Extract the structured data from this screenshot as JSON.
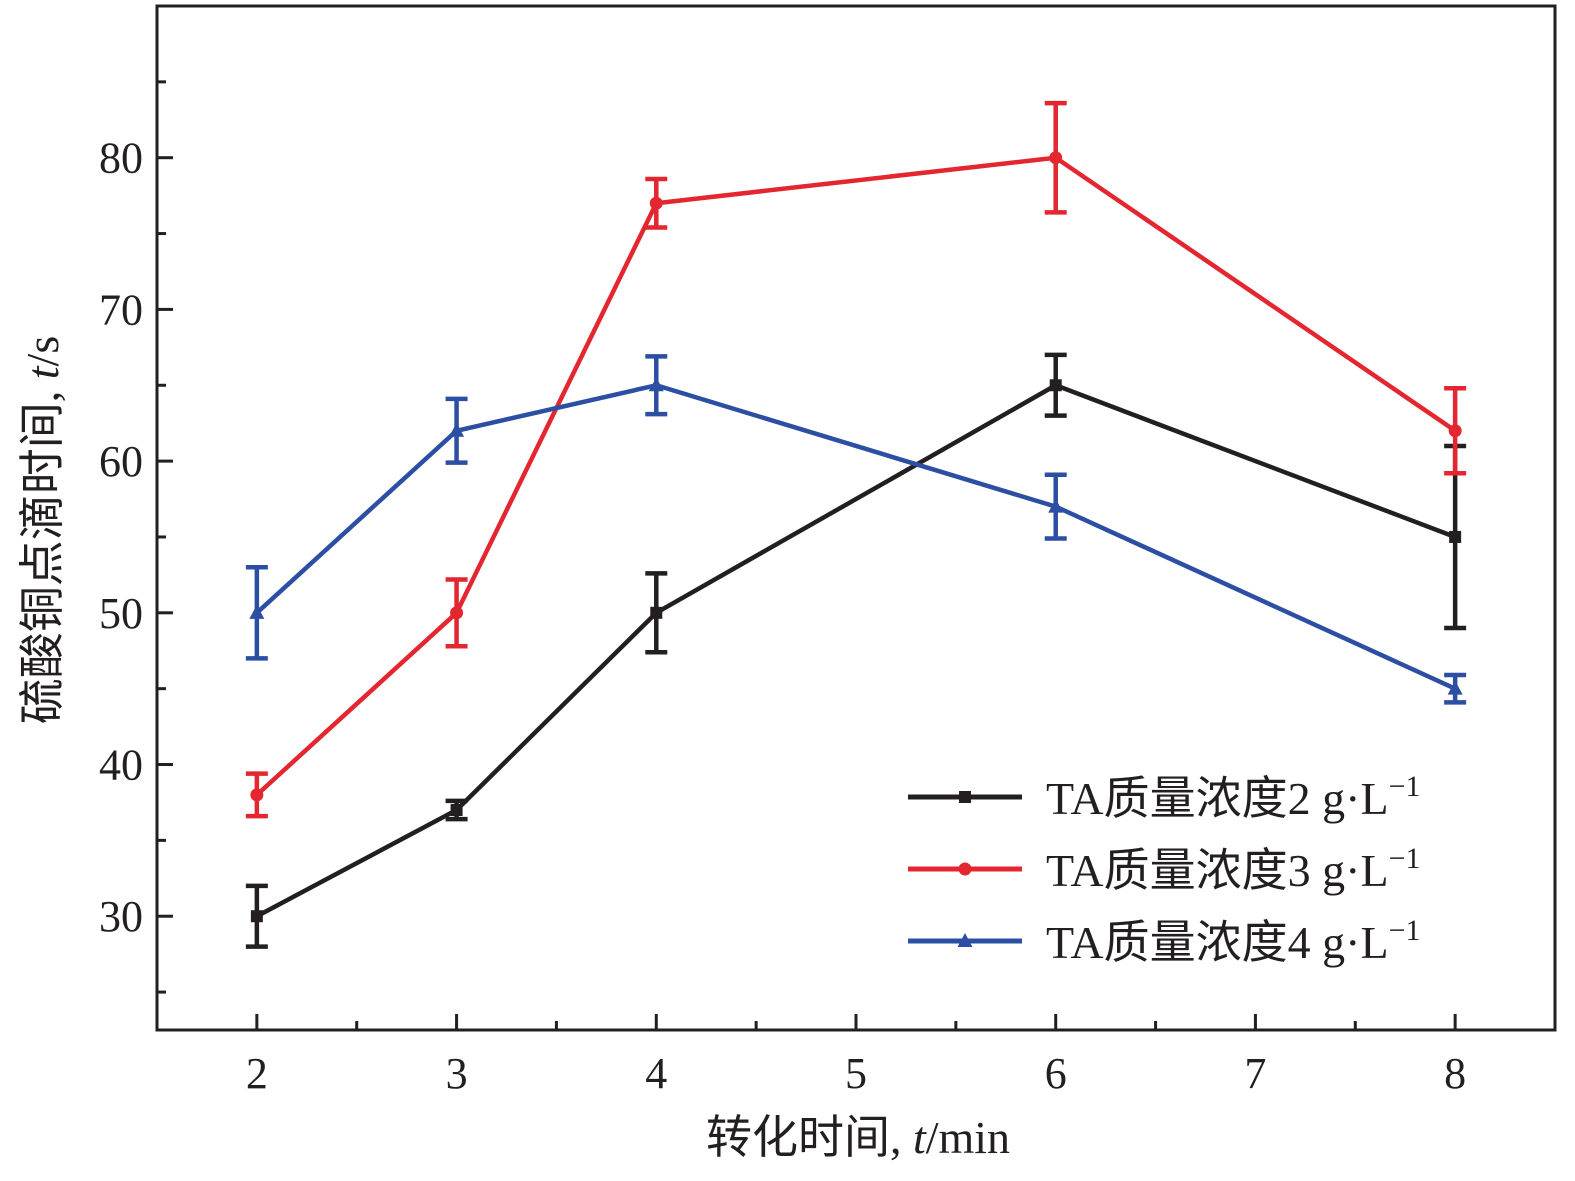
{
  "chart_data": {
    "type": "line",
    "xlabel": "转化时间, t/min",
    "xlabel_parts": {
      "prefix": "转化时间, ",
      "italic": "t",
      "suffix": "/min"
    },
    "ylabel": "硫酸铜点滴时间, t/s",
    "ylabel_parts": {
      "prefix": "硫酸铜点滴时间, ",
      "italic": "t",
      "suffix": "/s"
    },
    "xlim": [
      1.5,
      8.5
    ],
    "ylim": [
      22.5,
      90
    ],
    "x_ticks": [
      2,
      3,
      4,
      5,
      6,
      7,
      8
    ],
    "y_ticks": [
      30,
      40,
      50,
      60,
      70,
      80
    ],
    "grid": false,
    "legend_position": "bottom-right",
    "series": [
      {
        "name": "TA质量浓度2 g·L−1",
        "name_main": "TA质量浓度2 g·L",
        "name_sup": "−1",
        "color": "#231f20",
        "marker": "square",
        "x": [
          2,
          3,
          4,
          6,
          8
        ],
        "y": [
          30,
          37,
          50,
          65,
          55
        ],
        "error": [
          2,
          0.6,
          2.6,
          2,
          6
        ]
      },
      {
        "name": "TA质量浓度3 g·L−1",
        "name_main": "TA质量浓度3 g·L",
        "name_sup": "−1",
        "color": "#e3262f",
        "marker": "circle",
        "x": [
          2,
          3,
          4,
          6,
          8
        ],
        "y": [
          38,
          50,
          77,
          80,
          62
        ],
        "error": [
          1.4,
          2.2,
          1.6,
          3.6,
          2.8
        ]
      },
      {
        "name": "TA质量浓度4 g·L−1",
        "name_main": "TA质量浓度4 g·L",
        "name_sup": "−1",
        "color": "#2c4ea3",
        "marker": "triangle",
        "x": [
          2,
          3,
          4,
          6,
          8
        ],
        "y": [
          50,
          62,
          65,
          57,
          45
        ],
        "error": [
          3,
          2.1,
          1.9,
          2.1,
          0.9
        ]
      }
    ]
  }
}
